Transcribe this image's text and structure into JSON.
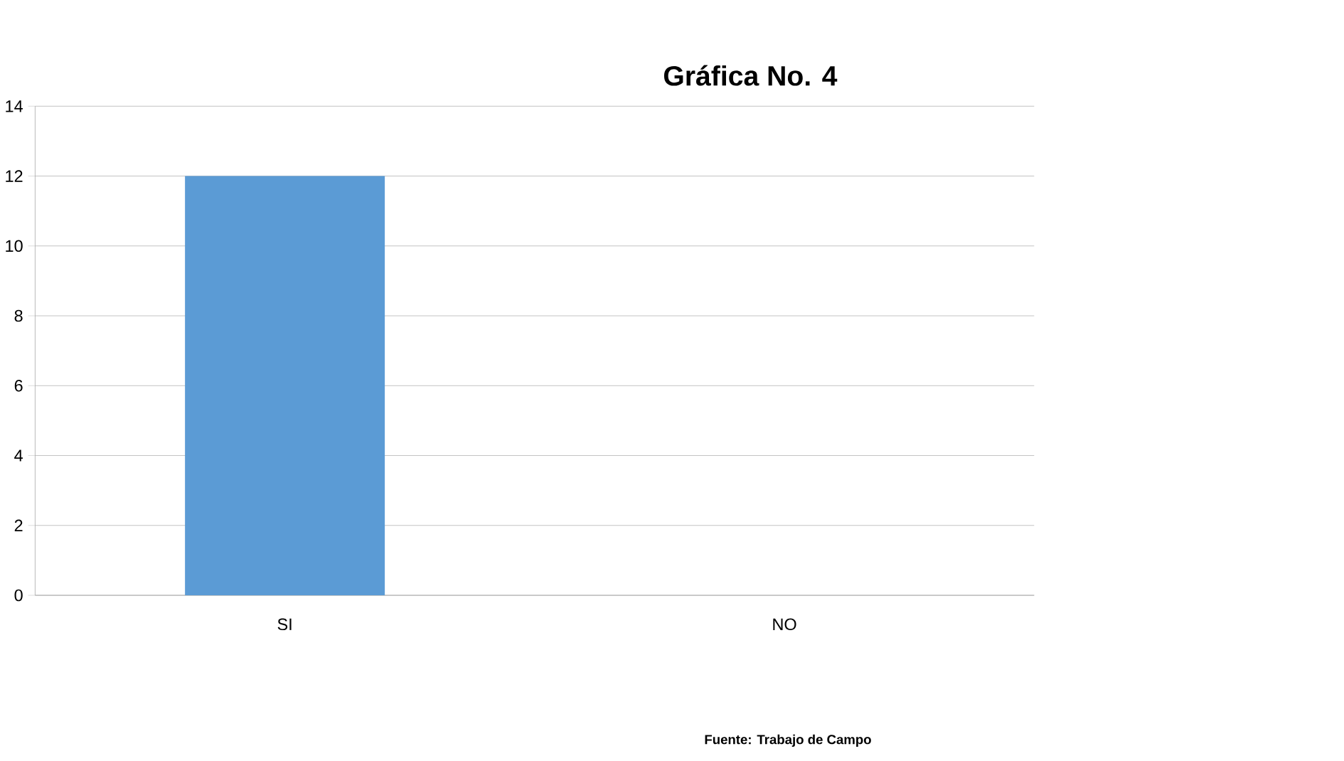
{
  "chart_data": {
    "type": "bar",
    "title": "Gráfica No. 4",
    "categories": [
      "SI",
      "NO"
    ],
    "values": [
      12,
      0
    ],
    "color": "#5b9bd5",
    "ylim": [
      0,
      14
    ],
    "yticks": [
      0,
      2,
      4,
      6,
      8,
      10,
      12,
      14
    ],
    "grid": "y",
    "annotations": [
      "Fuente: Trabajo de Campo"
    ]
  }
}
